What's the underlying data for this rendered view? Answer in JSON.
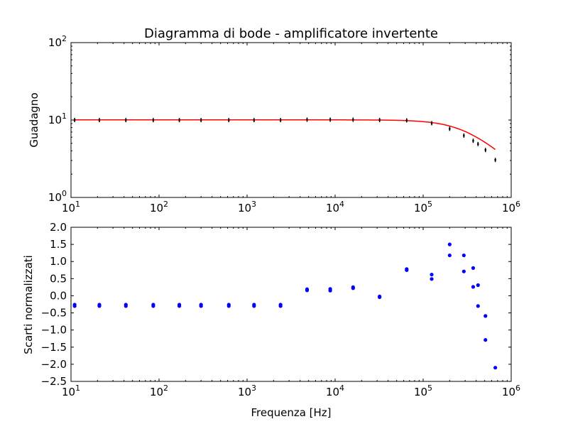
{
  "chart_data": [
    {
      "type": "line",
      "title": "Diagramma di bode - amplificatore invertente",
      "xlabel": "",
      "ylabel": "Guadagno",
      "x_scale": "log",
      "y_scale": "log",
      "xlim": [
        10,
        1000000
      ],
      "ylim": [
        1,
        100
      ],
      "x_ticks": [
        {
          "value": 10,
          "base": "10",
          "exp": "1"
        },
        {
          "value": 100,
          "base": "10",
          "exp": "2"
        },
        {
          "value": 1000,
          "base": "10",
          "exp": "3"
        },
        {
          "value": 10000,
          "base": "10",
          "exp": "4"
        },
        {
          "value": 100000,
          "base": "10",
          "exp": "5"
        },
        {
          "value": 1000000,
          "base": "10",
          "exp": "6"
        }
      ],
      "y_ticks": [
        {
          "value": 1,
          "base": "10",
          "exp": "0"
        },
        {
          "value": 10,
          "base": "10",
          "exp": "1"
        },
        {
          "value": 100,
          "base": "10",
          "exp": "2"
        }
      ],
      "fit_color": "#ff0000",
      "marker_color": "#000000",
      "fit_curve": {
        "gain": 10.05,
        "cutoff_hz": 300000,
        "x_start": 11,
        "x_end": 660000
      },
      "points": [
        {
          "x": 11,
          "y": 10.0
        },
        {
          "x": 21,
          "y": 9.98
        },
        {
          "x": 42,
          "y": 9.98
        },
        {
          "x": 86,
          "y": 9.98
        },
        {
          "x": 170,
          "y": 9.98
        },
        {
          "x": 300,
          "y": 9.98
        },
        {
          "x": 620,
          "y": 9.98
        },
        {
          "x": 1200,
          "y": 9.98
        },
        {
          "x": 2400,
          "y": 9.98
        },
        {
          "x": 4800,
          "y": 10.1
        },
        {
          "x": 8800,
          "y": 10.1
        },
        {
          "x": 16000,
          "y": 10.1
        },
        {
          "x": 32000,
          "y": 10.0
        },
        {
          "x": 65000,
          "y": 9.9
        },
        {
          "x": 125000,
          "y": 9.1
        },
        {
          "x": 200000,
          "y": 7.7
        },
        {
          "x": 290000,
          "y": 6.3
        },
        {
          "x": 370000,
          "y": 5.4
        },
        {
          "x": 420000,
          "y": 4.9
        },
        {
          "x": 510000,
          "y": 4.1
        },
        {
          "x": 660000,
          "y": 3.05
        }
      ]
    },
    {
      "type": "scatter",
      "title": "",
      "xlabel": "Frequenza [Hz]",
      "ylabel": "Scarti normalizzati",
      "x_scale": "log",
      "y_scale": "linear",
      "xlim": [
        10,
        1000000
      ],
      "ylim": [
        -2.5,
        2.0
      ],
      "x_ticks": [
        {
          "value": 10,
          "base": "10",
          "exp": "1"
        },
        {
          "value": 100,
          "base": "10",
          "exp": "2"
        },
        {
          "value": 1000,
          "base": "10",
          "exp": "3"
        },
        {
          "value": 10000,
          "base": "10",
          "exp": "4"
        },
        {
          "value": 100000,
          "base": "10",
          "exp": "5"
        },
        {
          "value": 1000000,
          "base": "10",
          "exp": "6"
        }
      ],
      "y_ticks": [
        {
          "value": 2.0,
          "label": "2.0"
        },
        {
          "value": 1.5,
          "label": "1.5"
        },
        {
          "value": 1.0,
          "label": "1.0"
        },
        {
          "value": 0.5,
          "label": "0.5"
        },
        {
          "value": 0.0,
          "label": "0.0"
        },
        {
          "value": -0.5,
          "label": "−0.5"
        },
        {
          "value": -1.0,
          "label": "−1.0"
        },
        {
          "value": -1.5,
          "label": "−1.5"
        },
        {
          "value": -2.0,
          "label": "−2.0"
        },
        {
          "value": -2.5,
          "label": "−2.5"
        }
      ],
      "marker_color": "#0000ff",
      "points": [
        {
          "x": 11,
          "y": -0.26
        },
        {
          "x": 11,
          "y": -0.3
        },
        {
          "x": 21,
          "y": -0.26
        },
        {
          "x": 21,
          "y": -0.3
        },
        {
          "x": 42,
          "y": -0.26
        },
        {
          "x": 42,
          "y": -0.3
        },
        {
          "x": 86,
          "y": -0.26
        },
        {
          "x": 86,
          "y": -0.3
        },
        {
          "x": 170,
          "y": -0.26
        },
        {
          "x": 170,
          "y": -0.3
        },
        {
          "x": 300,
          "y": -0.26
        },
        {
          "x": 300,
          "y": -0.3
        },
        {
          "x": 620,
          "y": -0.26
        },
        {
          "x": 620,
          "y": -0.3
        },
        {
          "x": 1200,
          "y": -0.26
        },
        {
          "x": 1200,
          "y": -0.3
        },
        {
          "x": 2400,
          "y": -0.26
        },
        {
          "x": 2400,
          "y": -0.3
        },
        {
          "x": 4800,
          "y": 0.16
        },
        {
          "x": 4800,
          "y": 0.19
        },
        {
          "x": 8800,
          "y": 0.15
        },
        {
          "x": 8800,
          "y": 0.2
        },
        {
          "x": 16000,
          "y": 0.22
        },
        {
          "x": 16000,
          "y": 0.25
        },
        {
          "x": 32000,
          "y": -0.02
        },
        {
          "x": 32000,
          "y": -0.04
        },
        {
          "x": 65000,
          "y": 0.75
        },
        {
          "x": 65000,
          "y": 0.78
        },
        {
          "x": 125000,
          "y": 0.49
        },
        {
          "x": 125000,
          "y": 0.62
        },
        {
          "x": 200000,
          "y": 1.5
        },
        {
          "x": 200000,
          "y": 1.18
        },
        {
          "x": 290000,
          "y": 1.18
        },
        {
          "x": 290000,
          "y": 0.71
        },
        {
          "x": 370000,
          "y": 0.81
        },
        {
          "x": 370000,
          "y": 0.26
        },
        {
          "x": 420000,
          "y": 0.31
        },
        {
          "x": 420000,
          "y": -0.3
        },
        {
          "x": 510000,
          "y": -0.59
        },
        {
          "x": 510000,
          "y": -1.29
        },
        {
          "x": 660000,
          "y": -2.1
        }
      ]
    }
  ]
}
